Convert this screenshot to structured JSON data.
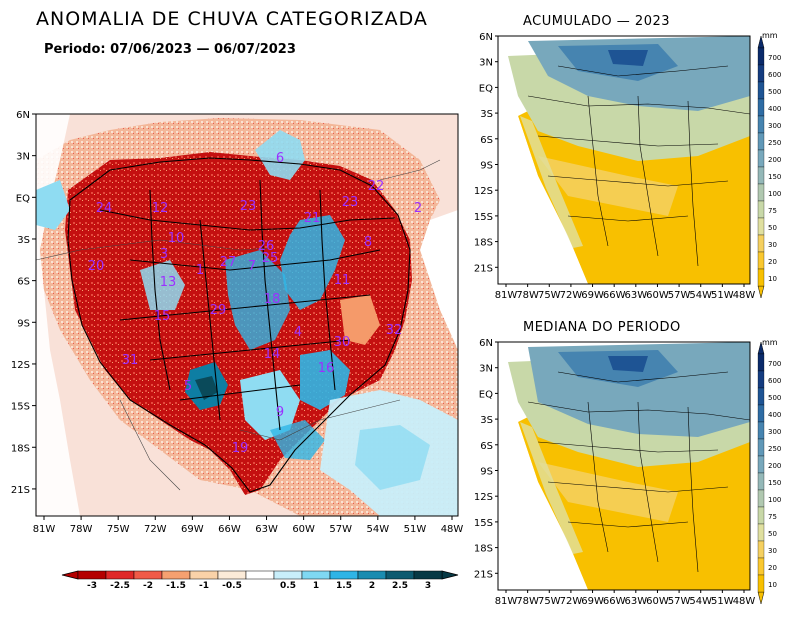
{
  "title": "ANOMALIA DE CHUVA CATEGORIZADA",
  "period": "Periodo: 07/06/2023 — 06/07/2023",
  "main_map": {
    "lat_ticks": [
      "6N",
      "3N",
      "EQ",
      "3S",
      "6S",
      "9S",
      "12S",
      "15S",
      "18S",
      "21S"
    ],
    "lon_ticks": [
      "81W",
      "78W",
      "75W",
      "72W",
      "69W",
      "66W",
      "63W",
      "60W",
      "57W",
      "54W",
      "51W",
      "48W"
    ],
    "basin_labels": [
      "6",
      "22",
      "24",
      "12",
      "23",
      "21",
      "23",
      "2",
      "10",
      "3",
      "26",
      "8",
      "20",
      "13",
      "1",
      "27",
      "7",
      "25",
      "11",
      "18",
      "15",
      "29",
      "4",
      "32",
      "30",
      "31",
      "14",
      "16",
      "5",
      "9",
      "19"
    ],
    "colors": {
      "strong_deficit": "#c00000",
      "deficit": "#e8453c",
      "mild_deficit": "#f59a6a",
      "near_normal": "#f7e6dc",
      "mild_surplus": "#8fdcf2",
      "surplus": "#30b6e6",
      "strong_surplus": "#0e7ea3",
      "extreme_surplus": "#0a4a5a"
    }
  },
  "colorbar_horizontal": {
    "labels": [
      "-3",
      "-2.5",
      "-2",
      "-1.5",
      "-1",
      "-0.5",
      "0.5",
      "1",
      "1.5",
      "2",
      "2.5",
      "3"
    ],
    "colors": [
      "#b40000",
      "#e02828",
      "#f05a48",
      "#f5a070",
      "#fad2a8",
      "#fcebd8",
      "#ffffff",
      "#c8eefa",
      "#7fd8f2",
      "#2fb4e6",
      "#1a8cb0",
      "#0c5a70",
      "#063844"
    ]
  },
  "panel_top": {
    "title": "ACUMULADO — 2023",
    "unit": "mm",
    "lat_ticks": [
      "6N",
      "3N",
      "EQ",
      "3S",
      "6S",
      "9S",
      "12S",
      "15S",
      "18S",
      "21S"
    ],
    "lon_ticks": [
      "81W",
      "78W",
      "75W",
      "72W",
      "69W",
      "66W",
      "63W",
      "60W",
      "57W",
      "54W",
      "51W",
      "48W"
    ]
  },
  "panel_bottom": {
    "title": "MEDIANA DO PERIODO",
    "unit": "mm",
    "lat_ticks": [
      "6N",
      "3N",
      "EQ",
      "3S",
      "6S",
      "9S",
      "12S",
      "15S",
      "18S",
      "21S"
    ],
    "lon_ticks": [
      "81W",
      "78W",
      "75W",
      "72W",
      "69W",
      "66W",
      "63W",
      "60W",
      "57W",
      "54W",
      "51W",
      "48W"
    ]
  },
  "colorbar_vertical": {
    "labels": [
      "700",
      "600",
      "500",
      "400",
      "300",
      "250",
      "200",
      "150",
      "100",
      "75",
      "50",
      "30",
      "20",
      "10"
    ],
    "colors": [
      "#0a2a6a",
      "#143c80",
      "#1e5494",
      "#2e6ca4",
      "#4684b0",
      "#6098b8",
      "#78a8bc",
      "#94b8b8",
      "#b0c8b0",
      "#c8d8a8",
      "#e0e0a0",
      "#f5d060",
      "#fac830",
      "#f8c000"
    ]
  }
}
